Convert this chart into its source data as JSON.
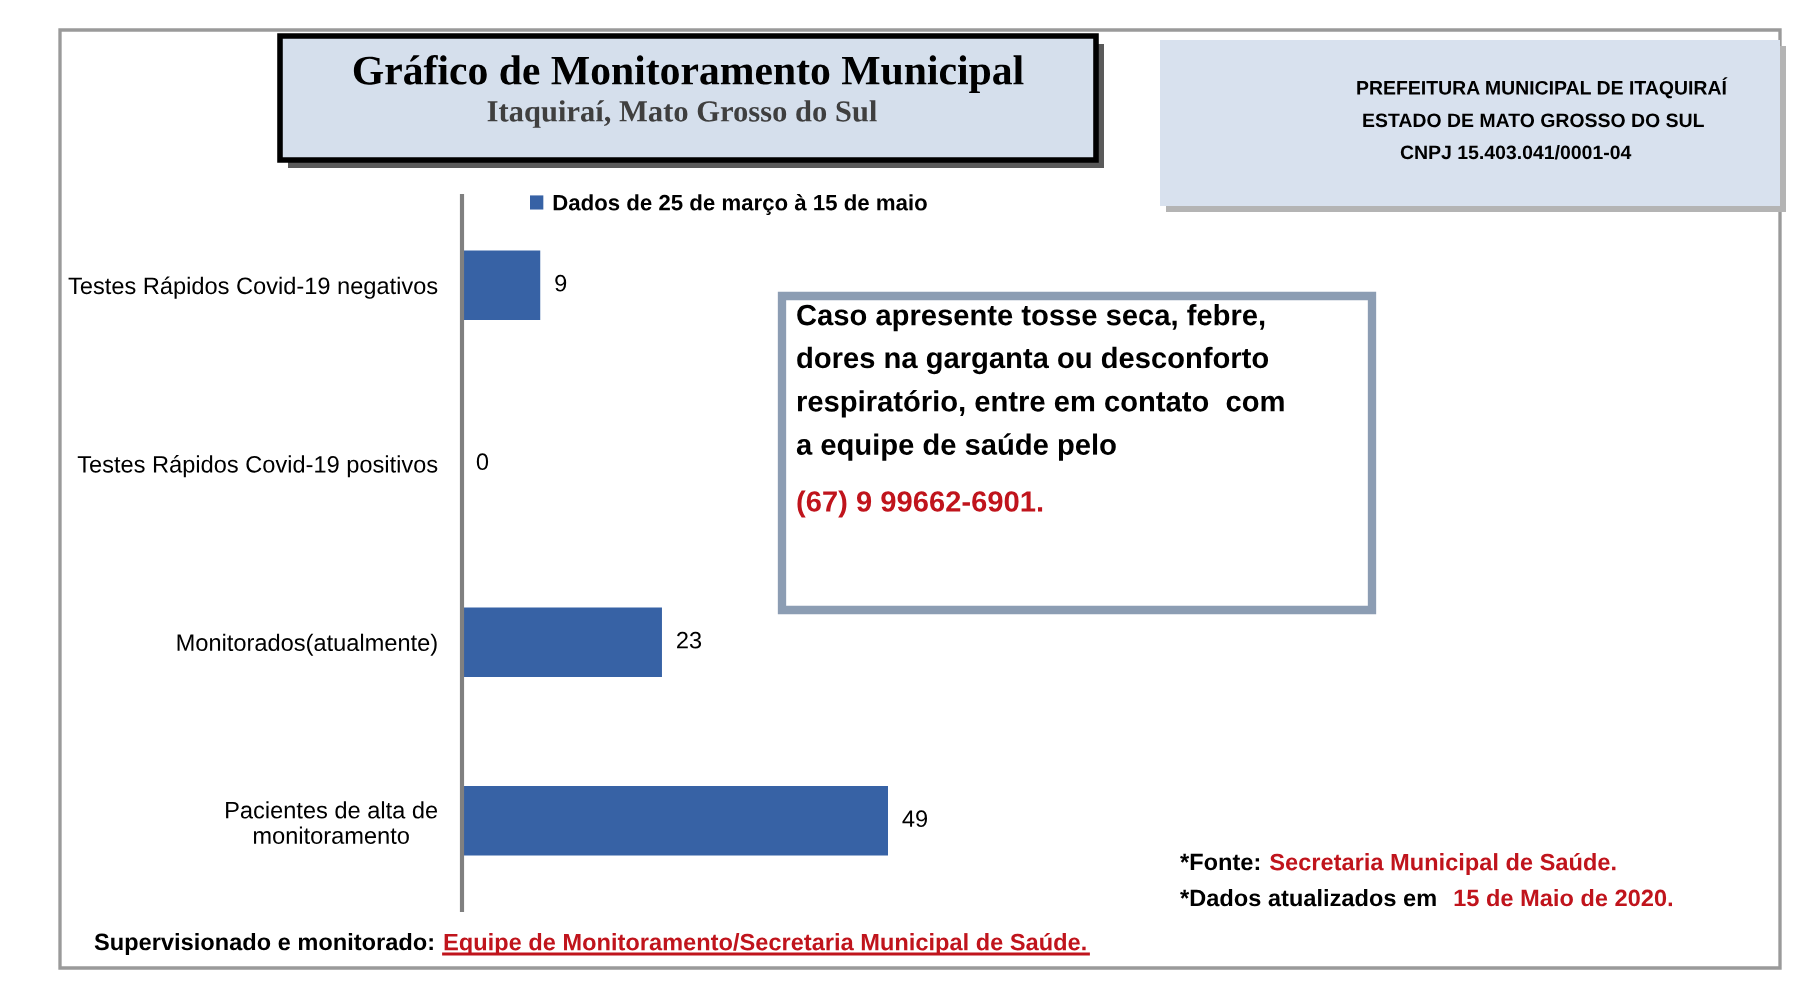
{
  "chart_data": {
    "type": "bar",
    "orientation": "horizontal",
    "title": "Gráfico de Monitoramento Municipal",
    "subtitle": "Itaquiraí, Mato Grosso do Sul",
    "categories": [
      "Testes Rápidos Covid-19 negativos",
      "Testes Rápidos Covid-19 positivos",
      "Monitorados(atualmente)",
      "Pacientes de alta de\nmonitoramento"
    ],
    "series": [
      {
        "name": "Dados de 25 de março à 15 de maio",
        "color": "#3762a5",
        "values": [
          9,
          0,
          23,
          49
        ]
      }
    ],
    "data_labels": true,
    "legend": "top",
    "tick_labels": "y",
    "annotations": [
      "PREFEITURA MUNICIPAL DE ITAQUIRAÍ",
      "ESTADO DE MATO GROSSO DO SUL",
      "CNPJ 15.403.041/0001-04",
      "Caso apresente tosse seca, febre,\ndores na garganta ou desconforto\nrespiratório, entre em contato  com\na equipe de saúde pelo",
      "(67) 9 99662-6901.",
      "*Fonte:",
      "Secretaria Municipal de Saúde.",
      "*Dados atualizados em",
      "15 de Maio de 2020.",
      "Supervisionado e monitorado:",
      "Equipe de Monitoramento/Secretaria Municipal de Saúde."
    ]
  }
}
